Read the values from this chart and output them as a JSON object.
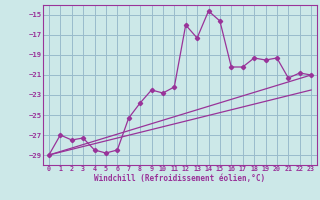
{
  "xlabel": "Windchill (Refroidissement éolien,°C)",
  "bg_color": "#cce8e8",
  "line_color": "#993399",
  "grid_color": "#99bbcc",
  "ylim": [
    -30,
    -14
  ],
  "xlim": [
    -0.5,
    23.5
  ],
  "yticks": [
    -29,
    -27,
    -25,
    -23,
    -21,
    -19,
    -17,
    -15
  ],
  "xticks": [
    0,
    1,
    2,
    3,
    4,
    5,
    6,
    7,
    8,
    9,
    10,
    11,
    12,
    13,
    14,
    15,
    16,
    17,
    18,
    19,
    20,
    21,
    22,
    23
  ],
  "series1_x": [
    0,
    1,
    2,
    3,
    4,
    5,
    6,
    7,
    8,
    9,
    10,
    11,
    12,
    13,
    14,
    15,
    16,
    17,
    18,
    19,
    20,
    21,
    22,
    23
  ],
  "series1_y": [
    -29.0,
    -27.0,
    -27.5,
    -27.3,
    -28.5,
    -28.8,
    -28.5,
    -25.3,
    -23.8,
    -22.5,
    -22.8,
    -22.2,
    -16.0,
    -17.3,
    -14.6,
    -15.6,
    -20.2,
    -20.2,
    -19.3,
    -19.5,
    -19.3,
    -21.3,
    -20.8,
    -21.0
  ],
  "series2_x": [
    0,
    23
  ],
  "series2_y": [
    -29.0,
    -21.0
  ],
  "series3_x": [
    0,
    23
  ],
  "series3_y": [
    -29.0,
    -22.5
  ]
}
